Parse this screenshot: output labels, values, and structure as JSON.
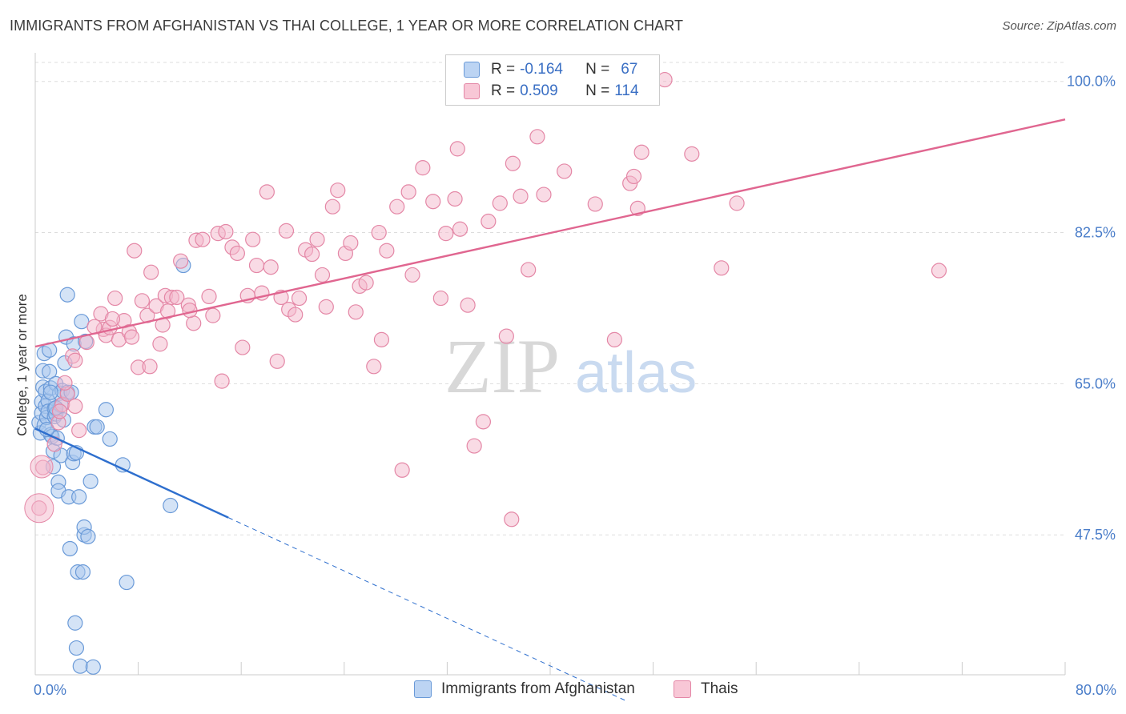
{
  "title": "IMMIGRANTS FROM AFGHANISTAN VS THAI COLLEGE, 1 YEAR OR MORE CORRELATION CHART",
  "source": "Source: ZipAtlas.com",
  "watermark": {
    "zip": "ZIP",
    "atlas": "atlas"
  },
  "colors": {
    "blue_fill": "#a9c7ee",
    "blue_stroke": "#6a9ad8",
    "blue_line": "#2e6fce",
    "pink_fill": "#f4b8cb",
    "pink_stroke": "#e487a6",
    "pink_line": "#e06690",
    "grid": "#dddddd",
    "tick_label": "#4a7dc9"
  },
  "legend": {
    "rows": [
      {
        "r_label": "R =",
        "r_value": "-0.164",
        "n_label": "N =",
        "n_value": "67"
      },
      {
        "r_label": "R =",
        "r_value": "0.509",
        "n_label": "N =",
        "n_value": "114"
      }
    ]
  },
  "bottom_legend": {
    "items": [
      "Immigrants from Afghanistan",
      "Thais"
    ]
  },
  "chart_data": {
    "type": "scatter",
    "xlabel": "",
    "ylabel": "College, 1 year or more",
    "xlim": [
      0,
      80
    ],
    "ylim": [
      31.3,
      102.2
    ],
    "x_tick_labels": [
      "0.0%",
      "80.0%"
    ],
    "y_ticks": [
      47.5,
      65.0,
      82.5,
      100.0
    ],
    "y_tick_labels": [
      "47.5%",
      "65.0%",
      "82.5%",
      "100.0%"
    ],
    "grid": "horizontal dashed",
    "legend_placement": "top-center",
    "series": [
      {
        "name": "Immigrants from Afghanistan",
        "color": "blue",
        "r": -0.164,
        "n": 67,
        "points": [
          [
            0.3,
            60.5
          ],
          [
            0.4,
            59.3
          ],
          [
            0.5,
            61.6
          ],
          [
            0.5,
            62.9
          ],
          [
            0.6,
            64.6
          ],
          [
            0.6,
            66.5
          ],
          [
            0.7,
            60.2
          ],
          [
            0.7,
            68.5
          ],
          [
            0.8,
            62.4
          ],
          [
            0.8,
            64.1
          ],
          [
            0.9,
            61.1
          ],
          [
            1.0,
            63.0
          ],
          [
            1.0,
            61.8
          ],
          [
            1.1,
            66.4
          ],
          [
            1.1,
            68.9
          ],
          [
            1.2,
            64.5
          ],
          [
            1.2,
            59.1
          ],
          [
            1.3,
            58.9
          ],
          [
            1.4,
            57.2
          ],
          [
            1.4,
            55.4
          ],
          [
            1.5,
            62.1
          ],
          [
            1.5,
            61.2
          ],
          [
            1.6,
            61.5
          ],
          [
            1.6,
            65.0
          ],
          [
            1.7,
            58.7
          ],
          [
            1.8,
            53.6
          ],
          [
            1.8,
            52.6
          ],
          [
            1.9,
            63.9
          ],
          [
            2.0,
            62.5
          ],
          [
            2.0,
            56.7
          ],
          [
            2.1,
            64.2
          ],
          [
            2.2,
            60.8
          ],
          [
            2.3,
            67.4
          ],
          [
            2.4,
            70.4
          ],
          [
            2.5,
            64.0
          ],
          [
            2.5,
            75.3
          ],
          [
            2.6,
            51.9
          ],
          [
            2.7,
            45.9
          ],
          [
            2.8,
            64.0
          ],
          [
            2.9,
            55.9
          ],
          [
            3.0,
            56.9
          ],
          [
            3.0,
            69.6
          ],
          [
            3.1,
            37.3
          ],
          [
            3.2,
            34.4
          ],
          [
            3.2,
            57.0
          ],
          [
            3.3,
            43.2
          ],
          [
            3.4,
            51.9
          ],
          [
            3.5,
            32.3
          ],
          [
            3.6,
            72.2
          ],
          [
            3.7,
            43.2
          ],
          [
            3.8,
            47.5
          ],
          [
            3.8,
            48.4
          ],
          [
            3.9,
            69.9
          ],
          [
            4.1,
            47.3
          ],
          [
            4.3,
            53.7
          ],
          [
            4.5,
            32.2
          ],
          [
            4.6,
            60.0
          ],
          [
            4.8,
            60.0
          ],
          [
            5.5,
            62.0
          ],
          [
            5.8,
            58.6
          ],
          [
            6.8,
            55.6
          ],
          [
            7.1,
            42.0
          ],
          [
            10.5,
            50.9
          ],
          [
            11.5,
            78.7
          ],
          [
            1.6,
            62.2
          ],
          [
            1.2,
            64.0
          ],
          [
            0.9,
            59.7
          ]
        ],
        "trendline": {
          "x": [
            0,
            15
          ],
          "y": [
            59.8,
            49.5
          ],
          "dashed_extension_to_x": 46
        }
      },
      {
        "name": "Thais",
        "color": "pink",
        "r": 0.509,
        "n": 114,
        "points": [
          [
            0.3,
            50.6
          ],
          [
            0.6,
            55.3
          ],
          [
            1.5,
            58.0
          ],
          [
            1.8,
            60.5
          ],
          [
            2.1,
            62.6
          ],
          [
            2.5,
            63.8
          ],
          [
            2.9,
            68.2
          ],
          [
            3.1,
            67.7
          ],
          [
            3.1,
            62.4
          ],
          [
            3.4,
            59.6
          ],
          [
            5.1,
            73.1
          ],
          [
            5.3,
            71.3
          ],
          [
            5.5,
            70.6
          ],
          [
            5.8,
            71.5
          ],
          [
            6.2,
            74.9
          ],
          [
            6.5,
            70.1
          ],
          [
            6.9,
            72.3
          ],
          [
            7.3,
            71.0
          ],
          [
            7.5,
            70.4
          ],
          [
            7.7,
            80.4
          ],
          [
            8.0,
            66.9
          ],
          [
            8.3,
            74.6
          ],
          [
            8.7,
            72.9
          ],
          [
            9.0,
            77.9
          ],
          [
            9.4,
            74.0
          ],
          [
            9.7,
            69.6
          ],
          [
            9.9,
            71.8
          ],
          [
            10.1,
            75.2
          ],
          [
            10.3,
            73.4
          ],
          [
            10.6,
            75.0
          ],
          [
            11.0,
            75.0
          ],
          [
            11.3,
            79.2
          ],
          [
            11.9,
            74.1
          ],
          [
            12.3,
            72.0
          ],
          [
            12.5,
            81.6
          ],
          [
            13.0,
            81.7
          ],
          [
            13.5,
            75.1
          ],
          [
            13.8,
            72.9
          ],
          [
            14.2,
            82.4
          ],
          [
            14.5,
            65.3
          ],
          [
            14.8,
            82.6
          ],
          [
            15.3,
            80.8
          ],
          [
            15.7,
            80.1
          ],
          [
            16.1,
            69.2
          ],
          [
            16.5,
            75.2
          ],
          [
            16.9,
            81.7
          ],
          [
            17.2,
            78.7
          ],
          [
            17.6,
            75.5
          ],
          [
            18.0,
            87.2
          ],
          [
            18.3,
            78.5
          ],
          [
            18.8,
            67.6
          ],
          [
            19.1,
            75.0
          ],
          [
            19.5,
            82.7
          ],
          [
            19.7,
            73.6
          ],
          [
            20.2,
            73.0
          ],
          [
            20.5,
            74.9
          ],
          [
            21.0,
            80.5
          ],
          [
            21.5,
            80.0
          ],
          [
            21.9,
            81.7
          ],
          [
            22.3,
            77.6
          ],
          [
            22.6,
            73.9
          ],
          [
            23.1,
            85.5
          ],
          [
            23.5,
            87.4
          ],
          [
            24.1,
            80.1
          ],
          [
            24.5,
            81.3
          ],
          [
            24.9,
            73.3
          ],
          [
            25.2,
            76.3
          ],
          [
            25.7,
            76.7
          ],
          [
            26.3,
            67.0
          ],
          [
            26.7,
            82.5
          ],
          [
            26.9,
            70.1
          ],
          [
            27.3,
            80.4
          ],
          [
            28.1,
            85.5
          ],
          [
            28.5,
            55.0
          ],
          [
            29.0,
            87.2
          ],
          [
            29.3,
            77.6
          ],
          [
            30.1,
            90.0
          ],
          [
            30.9,
            86.1
          ],
          [
            31.5,
            74.9
          ],
          [
            31.9,
            82.4
          ],
          [
            32.6,
            86.4
          ],
          [
            32.8,
            92.2
          ],
          [
            33.0,
            82.9
          ],
          [
            33.6,
            74.1
          ],
          [
            34.1,
            57.8
          ],
          [
            34.8,
            60.6
          ],
          [
            35.2,
            83.8
          ],
          [
            36.1,
            85.9
          ],
          [
            36.6,
            70.5
          ],
          [
            37.0,
            49.3
          ],
          [
            37.1,
            90.5
          ],
          [
            37.7,
            86.7
          ],
          [
            38.3,
            78.2
          ],
          [
            39.0,
            93.6
          ],
          [
            39.5,
            86.9
          ],
          [
            41.1,
            89.6
          ],
          [
            43.5,
            85.8
          ],
          [
            45.0,
            70.1
          ],
          [
            46.2,
            88.2
          ],
          [
            46.5,
            89.0
          ],
          [
            46.8,
            85.3
          ],
          [
            47.1,
            91.8
          ],
          [
            48.9,
            100.2
          ],
          [
            51.0,
            91.6
          ],
          [
            53.3,
            78.4
          ],
          [
            54.5,
            85.9
          ],
          [
            70.2,
            78.1
          ],
          [
            1.9,
            61.8
          ],
          [
            2.3,
            65.1
          ],
          [
            4.0,
            69.8
          ],
          [
            4.6,
            71.6
          ],
          [
            6.0,
            72.5
          ],
          [
            8.9,
            67.0
          ],
          [
            12.0,
            73.5
          ]
        ],
        "trendline": {
          "x": [
            0,
            80
          ],
          "y": [
            69.3,
            95.6
          ]
        }
      }
    ]
  }
}
